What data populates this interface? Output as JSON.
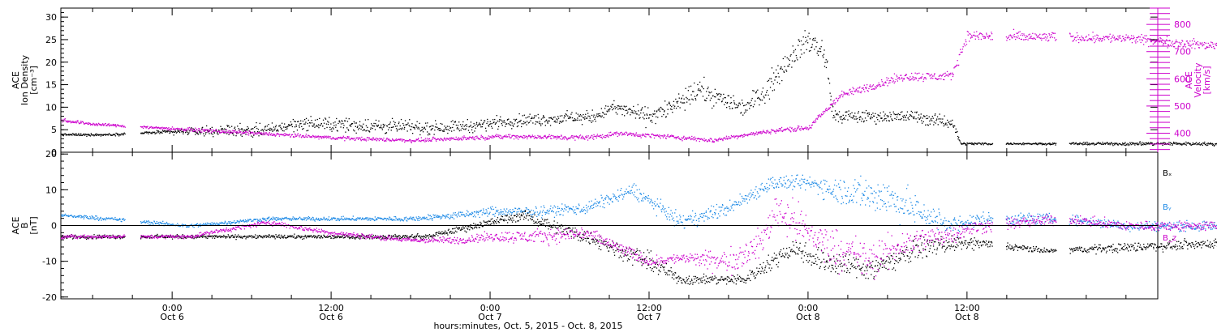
{
  "chart_data": [
    {
      "type": "scatter",
      "panel": "ion-density-velocity",
      "ylabel": [
        "ACE",
        "Ion Density",
        "[cm⁻³]"
      ],
      "ylim": [
        0,
        32
      ],
      "yticks": [
        0,
        5,
        10,
        15,
        20,
        25,
        30
      ],
      "y2label": [
        "ACE",
        "Velocity",
        "[km/s]"
      ],
      "y2lim": [
        330,
        860
      ],
      "y2ticks": [
        400,
        500,
        600,
        700,
        800
      ],
      "series": [
        {
          "axis": "left",
          "color": "#000000",
          "knots": [
            [
              -0.35,
              4
            ],
            [
              -0.2,
              4
            ],
            [
              -0.05,
              4.5
            ],
            [
              0.2,
              5
            ],
            [
              0.3,
              5
            ],
            [
              0.4,
              6.5
            ],
            [
              0.6,
              6
            ],
            [
              0.8,
              5.5
            ],
            [
              0.95,
              6
            ],
            [
              1.05,
              7
            ],
            [
              1.2,
              7.5
            ],
            [
              1.33,
              8
            ],
            [
              1.38,
              10
            ],
            [
              1.45,
              9
            ],
            [
              1.5,
              8
            ],
            [
              1.6,
              11
            ],
            [
              1.65,
              14
            ],
            [
              1.72,
              12
            ],
            [
              1.8,
              10
            ],
            [
              1.88,
              15
            ],
            [
              1.95,
              22
            ],
            [
              2.0,
              25
            ],
            [
              2.05,
              22
            ],
            [
              2.08,
              8
            ],
            [
              2.15,
              8
            ],
            [
              2.25,
              8
            ],
            [
              2.35,
              8
            ],
            [
              2.4,
              7
            ],
            [
              2.45,
              7
            ],
            [
              2.48,
              2
            ],
            [
              2.55,
              2
            ],
            [
              2.6,
              2
            ],
            [
              2.85,
              2
            ],
            [
              3.05,
              2
            ],
            [
              3.25,
              2
            ],
            [
              3.35,
              1.5
            ]
          ],
          "noise": [
            0.4,
            0.4,
            0.5,
            2,
            2,
            2,
            2.5,
            2,
            2,
            2,
            2,
            2,
            2,
            2.5,
            3,
            3,
            4,
            3,
            3,
            4,
            4,
            4,
            4,
            2.5,
            2,
            2,
            2,
            2,
            2,
            0.4,
            0.4,
            0.3,
            0.4,
            0.6,
            0.5,
            0.4
          ],
          "gaps": [
            [
              -0.15,
              -0.1
            ],
            [
              2.58,
              2.62
            ],
            [
              2.78,
              2.82
            ]
          ]
        },
        {
          "axis": "right",
          "color": "#cc00cc",
          "knots": [
            [
              -0.35,
              450
            ],
            [
              -0.25,
              435
            ],
            [
              -0.1,
              425
            ],
            [
              0.2,
              405
            ],
            [
              0.5,
              385
            ],
            [
              0.75,
              375
            ],
            [
              1.05,
              390
            ],
            [
              1.3,
              385
            ],
            [
              1.4,
              400
            ],
            [
              1.55,
              390
            ],
            [
              1.7,
              375
            ],
            [
              1.8,
              395
            ],
            [
              1.92,
              415
            ],
            [
              2.0,
              420
            ],
            [
              2.1,
              540
            ],
            [
              2.3,
              610
            ],
            [
              2.45,
              610
            ],
            [
              2.5,
              760
            ],
            [
              2.65,
              755
            ],
            [
              2.78,
              755
            ],
            [
              3.0,
              750
            ],
            [
              3.25,
              725
            ],
            [
              3.35,
              730
            ]
          ],
          "noise": [
            10,
            8,
            8,
            10,
            10,
            10,
            12,
            15,
            12,
            12,
            12,
            10,
            12,
            15,
            20,
            25,
            25,
            30,
            30,
            25,
            25,
            25,
            20
          ],
          "gaps": [
            [
              -0.15,
              -0.1
            ],
            [
              2.58,
              2.62
            ],
            [
              2.78,
              2.82
            ]
          ]
        }
      ]
    },
    {
      "type": "scatter",
      "panel": "magnetic-field",
      "ylabel": [
        "ACE",
        "B",
        "[nT]"
      ],
      "ylim": [
        -20.5,
        20.5
      ],
      "yticks": [
        -20,
        -10,
        0,
        10,
        20
      ],
      "zero_line": true,
      "legend": [
        "Bₓ",
        "Bᵧ",
        "B_z"
      ],
      "series": [
        {
          "name": "Bx",
          "color": "#000000",
          "knots": [
            [
              -0.35,
              -3
            ],
            [
              0.05,
              -3
            ],
            [
              0.2,
              -3
            ],
            [
              0.55,
              -3
            ],
            [
              0.8,
              -3
            ],
            [
              0.95,
              0
            ],
            [
              1.1,
              3
            ],
            [
              1.3,
              -3
            ],
            [
              1.5,
              -10
            ],
            [
              1.6,
              -15
            ],
            [
              1.8,
              -15
            ],
            [
              1.85,
              -12
            ],
            [
              1.95,
              -6
            ],
            [
              2.05,
              -10
            ],
            [
              2.2,
              -12
            ],
            [
              2.35,
              -6
            ],
            [
              2.45,
              -5
            ],
            [
              2.55,
              -5
            ],
            [
              2.75,
              -7
            ],
            [
              3.0,
              -6
            ],
            [
              3.25,
              -5
            ],
            [
              3.35,
              -5
            ]
          ],
          "noise": [
            0.8,
            0.8,
            0.8,
            0.8,
            1,
            1.5,
            2,
            3,
            4,
            2,
            2,
            3,
            4,
            5,
            5,
            4,
            3,
            2,
            1,
            2,
            2,
            1.5
          ],
          "gaps": [
            [
              -0.15,
              -0.1
            ],
            [
              2.58,
              2.62
            ],
            [
              2.78,
              2.82
            ]
          ]
        },
        {
          "name": "By",
          "color": "#1e8ae6",
          "knots": [
            [
              -0.35,
              3
            ],
            [
              -0.2,
              2
            ],
            [
              0.05,
              0
            ],
            [
              0.3,
              2
            ],
            [
              0.55,
              2
            ],
            [
              0.75,
              2
            ],
            [
              0.9,
              3
            ],
            [
              1.0,
              4
            ],
            [
              1.15,
              4
            ],
            [
              1.3,
              5
            ],
            [
              1.45,
              10
            ],
            [
              1.6,
              1
            ],
            [
              1.75,
              5
            ],
            [
              1.88,
              12
            ],
            [
              2.0,
              12
            ],
            [
              2.1,
              10
            ],
            [
              2.25,
              8
            ],
            [
              2.35,
              4
            ],
            [
              2.45,
              0
            ],
            [
              2.55,
              2
            ],
            [
              2.8,
              2
            ],
            [
              3.0,
              0
            ],
            [
              3.25,
              0
            ],
            [
              3.35,
              0
            ]
          ],
          "noise": [
            0.8,
            0.8,
            0.8,
            0.8,
            0.8,
            1,
            1.5,
            2,
            2,
            2.5,
            3,
            3,
            3,
            3,
            3,
            6,
            8,
            6,
            4,
            3,
            2,
            2,
            2,
            2
          ],
          "gaps": [
            [
              -0.15,
              -0.1
            ],
            [
              2.58,
              2.62
            ],
            [
              2.78,
              2.82
            ]
          ]
        },
        {
          "name": "Bz",
          "color": "#cc00cc",
          "knots": [
            [
              -0.35,
              -3
            ],
            [
              0.05,
              -3
            ],
            [
              0.3,
              1
            ],
            [
              0.5,
              -2
            ],
            [
              0.75,
              -4
            ],
            [
              0.9,
              -4
            ],
            [
              1.0,
              -3
            ],
            [
              1.15,
              -3
            ],
            [
              1.3,
              -2
            ],
            [
              1.5,
              -10
            ],
            [
              1.6,
              -9
            ],
            [
              1.75,
              -10
            ],
            [
              1.85,
              -5
            ],
            [
              1.9,
              5
            ],
            [
              2.05,
              -5
            ],
            [
              2.2,
              -10
            ],
            [
              2.3,
              -5
            ],
            [
              2.45,
              -2
            ],
            [
              2.55,
              0
            ],
            [
              2.8,
              2
            ],
            [
              3.0,
              0
            ],
            [
              3.25,
              0
            ],
            [
              3.35,
              0
            ]
          ],
          "noise": [
            0.8,
            0.8,
            1,
            1,
            1,
            1.5,
            2,
            3,
            3,
            2,
            2,
            5,
            6,
            8,
            8,
            8,
            6,
            4,
            3,
            2,
            2,
            2,
            2
          ],
          "gaps": [
            [
              -0.15,
              -0.1
            ],
            [
              2.58,
              2.62
            ],
            [
              2.78,
              2.82
            ]
          ]
        }
      ]
    }
  ],
  "x_axis": {
    "ticks": [
      {
        "t": 0,
        "time": "0:00",
        "date": "Oct 6"
      },
      {
        "t": 0.5,
        "time": "12:00",
        "date": "Oct 6"
      },
      {
        "t": 1,
        "time": "0:00",
        "date": "Oct 7"
      },
      {
        "t": 1.5,
        "time": "12:00",
        "date": "Oct 7"
      },
      {
        "t": 2,
        "time": "0:00",
        "date": "Oct 8"
      },
      {
        "t": 2.5,
        "time": "12:00",
        "date": "Oct 8"
      }
    ],
    "minor_per_major": 4,
    "xlim": [
      -0.35,
      3.1
    ],
    "caption": "hours:minutes, Oct. 5, 2015 - Oct. 8, 2015"
  }
}
